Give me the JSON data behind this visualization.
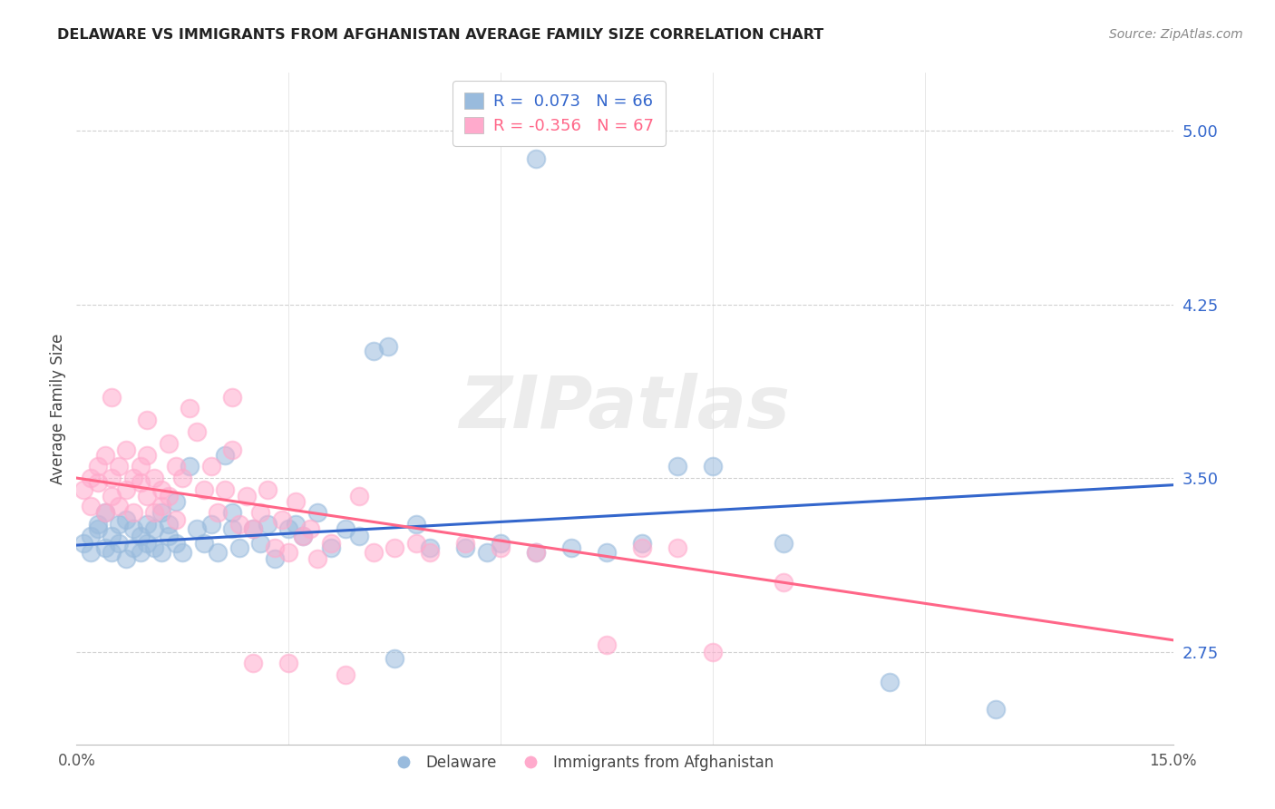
{
  "title": "DELAWARE VS IMMIGRANTS FROM AFGHANISTAN AVERAGE FAMILY SIZE CORRELATION CHART",
  "source": "Source: ZipAtlas.com",
  "ylabel": "Average Family Size",
  "ytick_labels": [
    "2.75",
    "3.50",
    "4.25",
    "5.00"
  ],
  "ytick_values": [
    2.75,
    3.5,
    4.25,
    5.0
  ],
  "ylim": [
    2.35,
    5.25
  ],
  "xlim": [
    0.0,
    0.155
  ],
  "legend_line1": "R =  0.073   N = 66",
  "legend_line2": "R = -0.356   N = 67",
  "blue_color": "#99BBDD",
  "pink_color": "#FFAACC",
  "blue_line_color": "#3366CC",
  "pink_line_color": "#FF6688",
  "watermark": "ZIPatlas",
  "blue_scatter": [
    [
      0.001,
      3.22
    ],
    [
      0.002,
      3.25
    ],
    [
      0.002,
      3.18
    ],
    [
      0.003,
      3.28
    ],
    [
      0.003,
      3.3
    ],
    [
      0.004,
      3.2
    ],
    [
      0.004,
      3.35
    ],
    [
      0.005,
      3.18
    ],
    [
      0.005,
      3.25
    ],
    [
      0.006,
      3.22
    ],
    [
      0.006,
      3.3
    ],
    [
      0.007,
      3.15
    ],
    [
      0.007,
      3.32
    ],
    [
      0.008,
      3.2
    ],
    [
      0.008,
      3.28
    ],
    [
      0.009,
      3.18
    ],
    [
      0.009,
      3.25
    ],
    [
      0.01,
      3.22
    ],
    [
      0.01,
      3.3
    ],
    [
      0.011,
      3.28
    ],
    [
      0.011,
      3.2
    ],
    [
      0.012,
      3.35
    ],
    [
      0.012,
      3.18
    ],
    [
      0.013,
      3.25
    ],
    [
      0.013,
      3.3
    ],
    [
      0.014,
      3.22
    ],
    [
      0.014,
      3.4
    ],
    [
      0.015,
      3.18
    ],
    [
      0.016,
      3.55
    ],
    [
      0.017,
      3.28
    ],
    [
      0.018,
      3.22
    ],
    [
      0.019,
      3.3
    ],
    [
      0.02,
      3.18
    ],
    [
      0.021,
      3.6
    ],
    [
      0.022,
      3.28
    ],
    [
      0.022,
      3.35
    ],
    [
      0.023,
      3.2
    ],
    [
      0.025,
      3.28
    ],
    [
      0.026,
      3.22
    ],
    [
      0.027,
      3.3
    ],
    [
      0.028,
      3.15
    ],
    [
      0.03,
      3.28
    ],
    [
      0.031,
      3.3
    ],
    [
      0.032,
      3.25
    ],
    [
      0.034,
      3.35
    ],
    [
      0.036,
      3.2
    ],
    [
      0.038,
      3.28
    ],
    [
      0.04,
      3.25
    ],
    [
      0.042,
      4.05
    ],
    [
      0.044,
      4.07
    ],
    [
      0.048,
      3.3
    ],
    [
      0.05,
      3.2
    ],
    [
      0.055,
      3.2
    ],
    [
      0.058,
      3.18
    ],
    [
      0.06,
      3.22
    ],
    [
      0.065,
      3.18
    ],
    [
      0.07,
      3.2
    ],
    [
      0.075,
      3.18
    ],
    [
      0.08,
      3.22
    ],
    [
      0.085,
      3.55
    ],
    [
      0.09,
      3.55
    ],
    [
      0.1,
      3.22
    ],
    [
      0.115,
      2.62
    ],
    [
      0.13,
      2.5
    ],
    [
      0.065,
      4.88
    ],
    [
      0.045,
      2.72
    ]
  ],
  "pink_scatter": [
    [
      0.001,
      3.45
    ],
    [
      0.002,
      3.5
    ],
    [
      0.002,
      3.38
    ],
    [
      0.003,
      3.55
    ],
    [
      0.003,
      3.48
    ],
    [
      0.004,
      3.6
    ],
    [
      0.004,
      3.35
    ],
    [
      0.005,
      3.42
    ],
    [
      0.005,
      3.5
    ],
    [
      0.006,
      3.55
    ],
    [
      0.006,
      3.38
    ],
    [
      0.007,
      3.62
    ],
    [
      0.007,
      3.45
    ],
    [
      0.008,
      3.5
    ],
    [
      0.008,
      3.35
    ],
    [
      0.009,
      3.48
    ],
    [
      0.009,
      3.55
    ],
    [
      0.01,
      3.42
    ],
    [
      0.01,
      3.6
    ],
    [
      0.011,
      3.35
    ],
    [
      0.011,
      3.5
    ],
    [
      0.012,
      3.45
    ],
    [
      0.012,
      3.38
    ],
    [
      0.013,
      3.65
    ],
    [
      0.013,
      3.42
    ],
    [
      0.014,
      3.55
    ],
    [
      0.014,
      3.32
    ],
    [
      0.015,
      3.5
    ],
    [
      0.016,
      3.8
    ],
    [
      0.017,
      3.7
    ],
    [
      0.018,
      3.45
    ],
    [
      0.019,
      3.55
    ],
    [
      0.02,
      3.35
    ],
    [
      0.021,
      3.45
    ],
    [
      0.022,
      3.62
    ],
    [
      0.022,
      3.85
    ],
    [
      0.023,
      3.3
    ],
    [
      0.024,
      3.42
    ],
    [
      0.025,
      3.28
    ],
    [
      0.026,
      3.35
    ],
    [
      0.027,
      3.45
    ],
    [
      0.028,
      3.2
    ],
    [
      0.029,
      3.32
    ],
    [
      0.03,
      3.18
    ],
    [
      0.031,
      3.4
    ],
    [
      0.032,
      3.25
    ],
    [
      0.033,
      3.28
    ],
    [
      0.034,
      3.15
    ],
    [
      0.036,
      3.22
    ],
    [
      0.04,
      3.42
    ],
    [
      0.042,
      3.18
    ],
    [
      0.045,
      3.2
    ],
    [
      0.048,
      3.22
    ],
    [
      0.05,
      3.18
    ],
    [
      0.055,
      3.22
    ],
    [
      0.06,
      3.2
    ],
    [
      0.065,
      3.18
    ],
    [
      0.075,
      2.78
    ],
    [
      0.08,
      3.2
    ],
    [
      0.085,
      3.2
    ],
    [
      0.09,
      2.75
    ],
    [
      0.1,
      3.05
    ],
    [
      0.005,
      3.85
    ],
    [
      0.01,
      3.75
    ],
    [
      0.025,
      2.7
    ],
    [
      0.03,
      2.7
    ],
    [
      0.038,
      2.65
    ]
  ],
  "blue_trendline_x": [
    0.0,
    0.155
  ],
  "blue_trendline_y": [
    3.21,
    3.47
  ],
  "pink_trendline_x": [
    0.0,
    0.155
  ],
  "pink_trendline_y": [
    3.5,
    2.8
  ]
}
